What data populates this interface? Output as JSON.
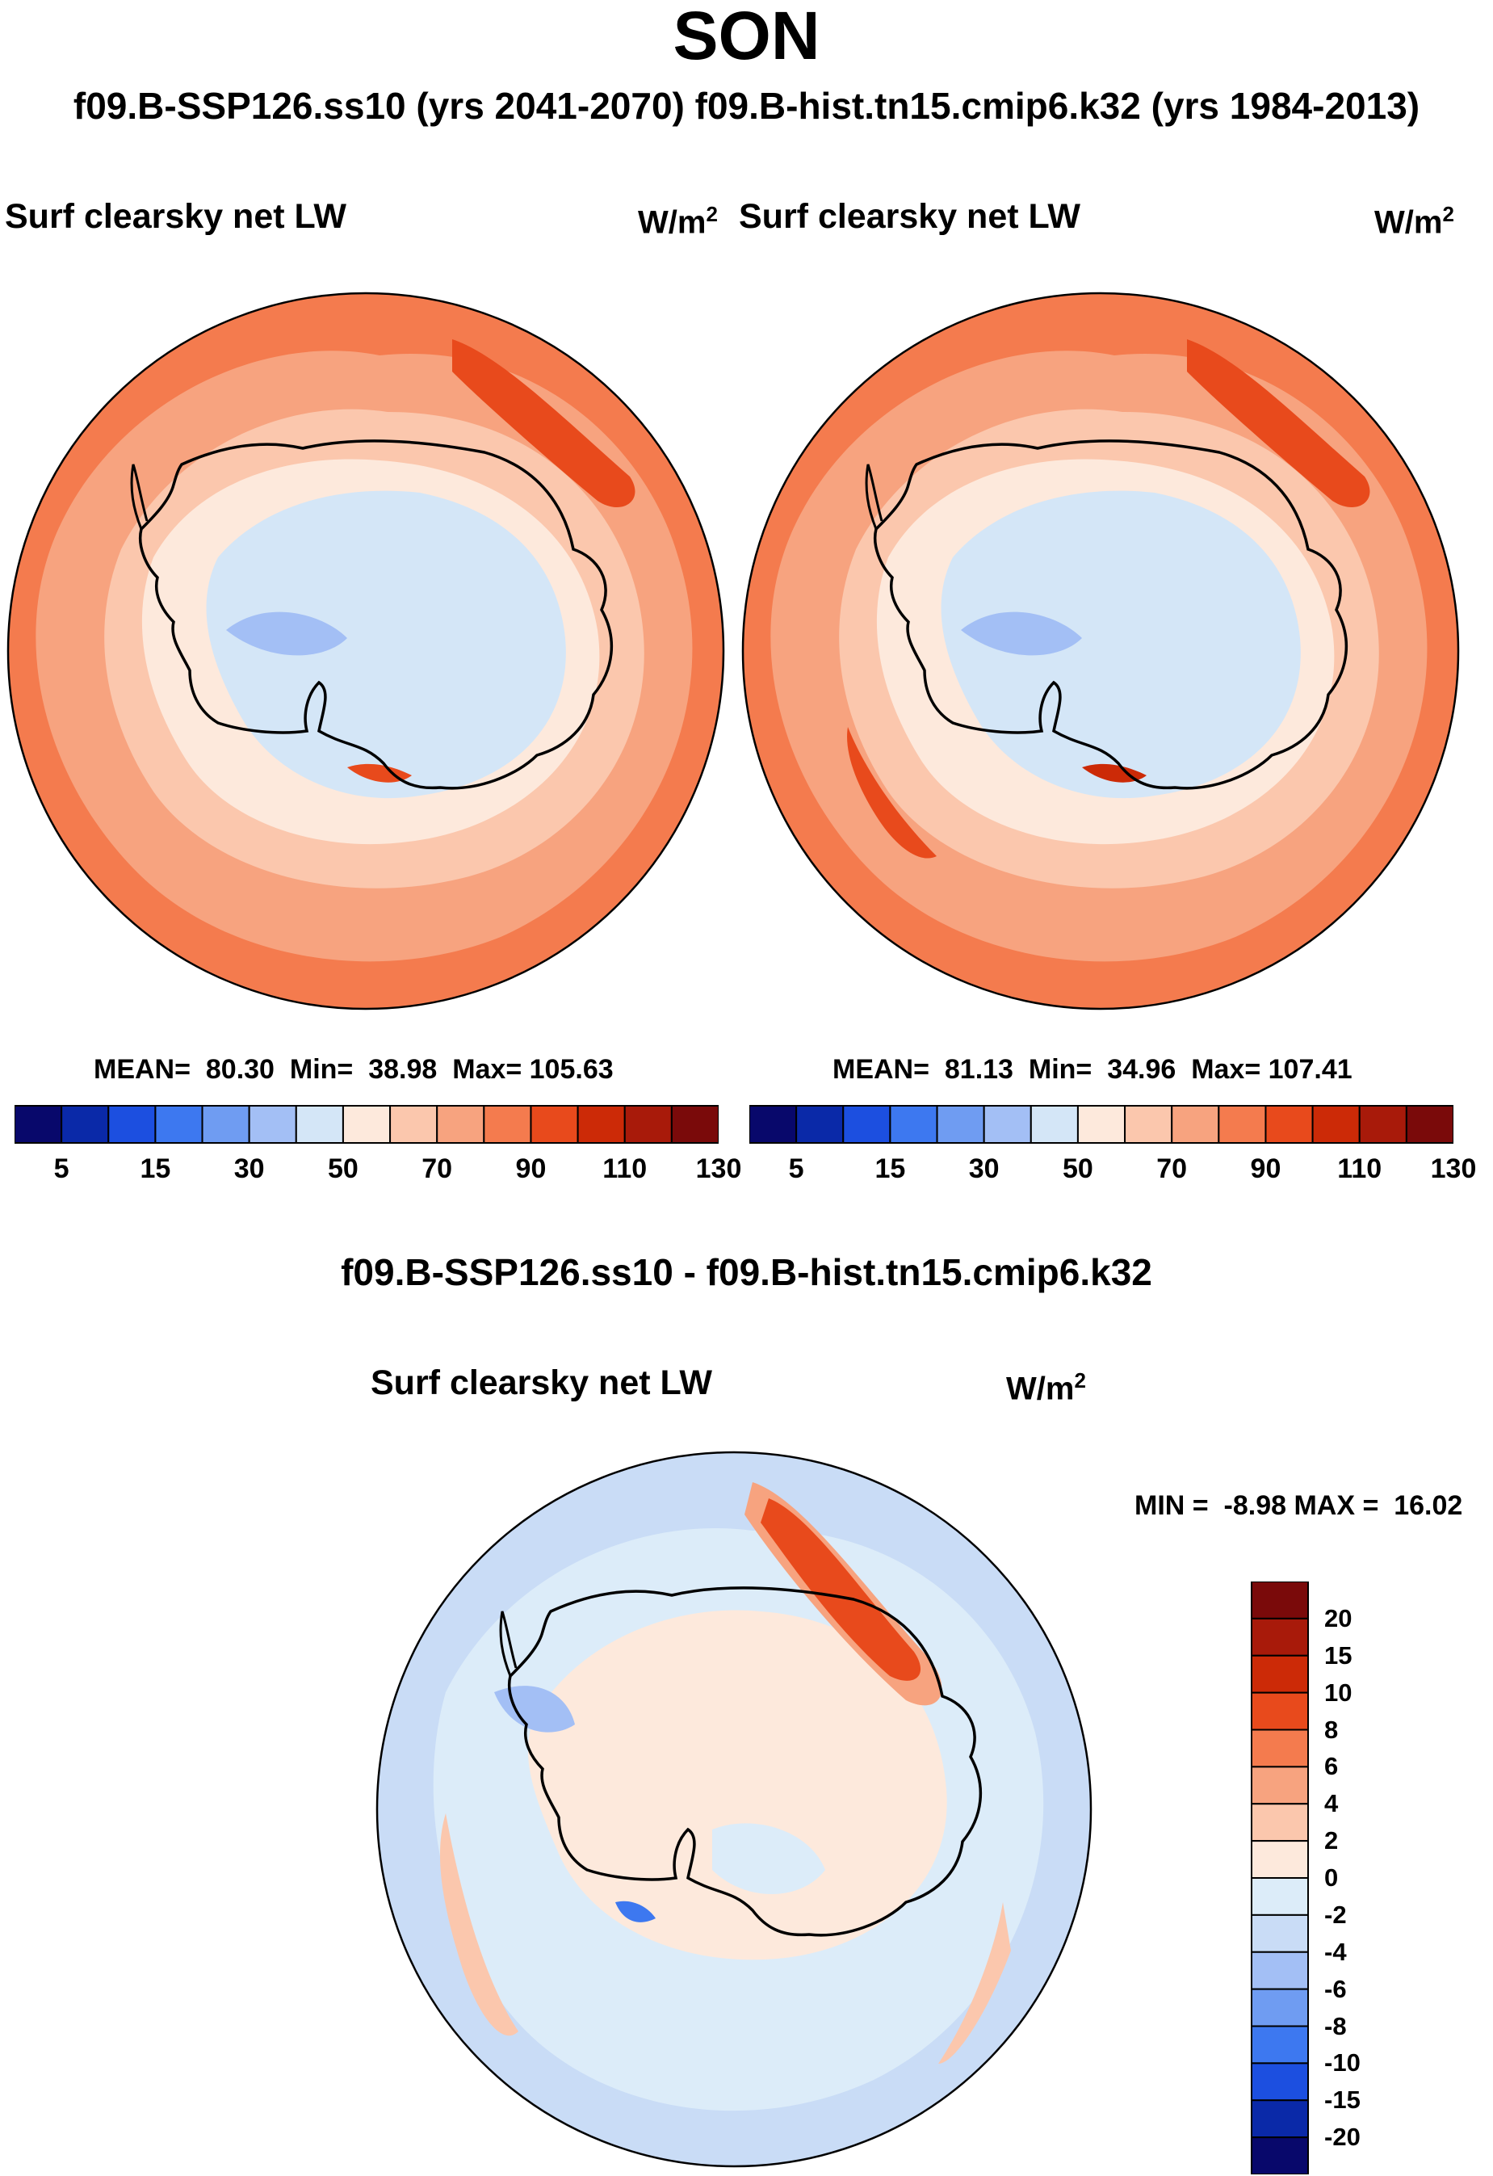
{
  "title": "SON",
  "subtitle": "f09.B-SSP126.ss10 (yrs 2041-2070)  f09.B-hist.tn15.cmip6.k32 (yrs 1984-2013)",
  "diff_title": "f09.B-SSP126.ss10 - f09.B-hist.tn15.cmip6.k32",
  "colors": {
    "abs_scale": [
      "#08086b",
      "#0a29a8",
      "#1c4fe0",
      "#3d78f0",
      "#6f9cf2",
      "#a3bff5",
      "#d4e6f7",
      "#fde9dc",
      "#fbc7ad",
      "#f7a37f",
      "#f47b4e",
      "#e84a1c",
      "#cc2a07",
      "#a81a0a",
      "#7a0a0a"
    ],
    "diff_scale": [
      "#08086b",
      "#0a29a8",
      "#1c4fe0",
      "#3d78f0",
      "#6f9cf2",
      "#a3bff5",
      "#c9dcf6",
      "#dcecf9",
      "#fde9dc",
      "#fbc7ad",
      "#f7a37f",
      "#f47b4e",
      "#e84a1c",
      "#cc2a07",
      "#a81a0a",
      "#7a0a0a"
    ]
  },
  "chart_data": [
    {
      "type": "heatmap",
      "projection": "south-polar-stereographic",
      "panel": "left",
      "label": "Surf clearsky net LW",
      "units": "W/m",
      "units_exp": "2",
      "stats": {
        "mean_label": "MEAN=",
        "mean": "80.30",
        "min_label": "Min=",
        "min": "38.98",
        "max_label": "Max=",
        "max": "105.63"
      },
      "colorbar_ticks": [
        "5",
        "15",
        "30",
        "50",
        "70",
        "90",
        "110",
        "130"
      ]
    },
    {
      "type": "heatmap",
      "projection": "south-polar-stereographic",
      "panel": "right",
      "label": "Surf clearsky net LW",
      "units": "W/m",
      "units_exp": "2",
      "stats": {
        "mean_label": "MEAN=",
        "mean": "81.13",
        "min_label": "Min=",
        "min": "34.96",
        "max_label": "Max=",
        "max": "107.41"
      },
      "colorbar_ticks": [
        "5",
        "15",
        "30",
        "50",
        "70",
        "90",
        "110",
        "130"
      ]
    },
    {
      "type": "heatmap",
      "projection": "south-polar-stereographic",
      "panel": "difference",
      "label": "Surf clearsky net LW",
      "units": "W/m",
      "units_exp": "2",
      "stats_text": "MIN =  -8.98 MAX =  16.02",
      "colorbar_ticks": [
        "20",
        "15",
        "10",
        "8",
        "6",
        "4",
        "2",
        "0",
        "-2",
        "-4",
        "-6",
        "-8",
        "-10",
        "-15",
        "-20"
      ]
    }
  ]
}
